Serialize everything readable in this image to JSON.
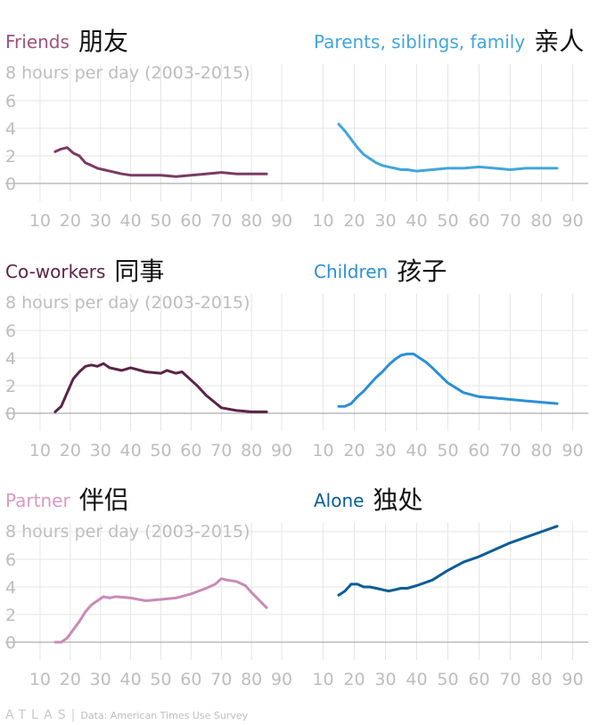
{
  "subtitle": "8 hours per day (2003-2015)",
  "footer": {
    "logo": "ATLAS",
    "source": "Data: American Times Use Survey"
  },
  "colors": {
    "gridline": "#e6e6e6",
    "zero_line": "#9a9a9a",
    "tick_text": "#bdbdbd",
    "ytick_text": "#bdbdbd"
  },
  "chart_data": [
    {
      "type": "line",
      "title": "Friends",
      "title_zh": "朋友",
      "color": "#7b3a63",
      "title_color": "#a0527f",
      "show_subtitle": false,
      "x": [
        15,
        17,
        19,
        21,
        23,
        25,
        27,
        29,
        31,
        33,
        35,
        37,
        40,
        45,
        50,
        55,
        60,
        65,
        70,
        75,
        80,
        85
      ],
      "y": [
        2.3,
        2.5,
        2.6,
        2.2,
        2.0,
        1.5,
        1.3,
        1.1,
        1.0,
        0.9,
        0.8,
        0.7,
        0.6,
        0.6,
        0.6,
        0.5,
        0.6,
        0.7,
        0.8,
        0.7,
        0.7,
        0.7
      ],
      "xticks": [
        10,
        20,
        30,
        40,
        50,
        60,
        70,
        80,
        90
      ],
      "yticks": [
        0,
        2,
        4,
        6
      ],
      "xlim": [
        5,
        95
      ],
      "ylim": [
        0,
        8
      ]
    },
    {
      "type": "line",
      "title": "Parents, siblings, family",
      "title_zh": "亲人",
      "color": "#42a5dc",
      "title_color": "#42a5dc",
      "show_subtitle": false,
      "x": [
        15,
        17,
        19,
        21,
        23,
        25,
        27,
        29,
        31,
        33,
        35,
        37,
        40,
        45,
        50,
        55,
        60,
        65,
        70,
        75,
        80,
        85
      ],
      "y": [
        4.3,
        3.8,
        3.2,
        2.6,
        2.1,
        1.8,
        1.5,
        1.3,
        1.2,
        1.1,
        1.0,
        1.0,
        0.9,
        1.0,
        1.1,
        1.1,
        1.2,
        1.1,
        1.0,
        1.1,
        1.1,
        1.1
      ],
      "xticks": [
        10,
        20,
        30,
        40,
        50,
        60,
        70,
        80,
        90
      ],
      "yticks": [
        0,
        2,
        4,
        6
      ],
      "xlim": [
        5,
        95
      ],
      "ylim": [
        0,
        8
      ]
    },
    {
      "type": "line",
      "title": "Co-workers",
      "title_zh": "同事",
      "color": "#5b2346",
      "title_color": "#5b2346",
      "show_subtitle": true,
      "x": [
        15,
        17,
        19,
        21,
        23,
        25,
        27,
        29,
        31,
        33,
        35,
        37,
        40,
        45,
        50,
        52,
        55,
        57,
        60,
        62,
        65,
        70,
        75,
        80,
        85
      ],
      "y": [
        0.1,
        0.5,
        1.5,
        2.5,
        3.0,
        3.4,
        3.5,
        3.4,
        3.6,
        3.3,
        3.2,
        3.1,
        3.3,
        3.0,
        2.9,
        3.1,
        2.9,
        3.0,
        2.4,
        2.0,
        1.3,
        0.4,
        0.2,
        0.1,
        0.1
      ],
      "xticks": [
        10,
        20,
        30,
        40,
        50,
        60,
        70,
        80,
        90
      ],
      "yticks": [
        0,
        2,
        4,
        6
      ],
      "xlim": [
        5,
        95
      ],
      "ylim": [
        0,
        8
      ]
    },
    {
      "type": "line",
      "title": "Children",
      "title_zh": "孩子",
      "color": "#2b8fd6",
      "title_color": "#2b8fd6",
      "show_subtitle": false,
      "x": [
        15,
        17,
        19,
        21,
        23,
        25,
        27,
        29,
        31,
        33,
        35,
        37,
        39,
        41,
        43,
        45,
        50,
        55,
        60,
        65,
        70,
        75,
        80,
        85
      ],
      "y": [
        0.5,
        0.5,
        0.7,
        1.2,
        1.6,
        2.1,
        2.6,
        3.0,
        3.5,
        3.9,
        4.2,
        4.3,
        4.3,
        4.0,
        3.7,
        3.3,
        2.2,
        1.5,
        1.2,
        1.1,
        1.0,
        0.9,
        0.8,
        0.7
      ],
      "xticks": [
        10,
        20,
        30,
        40,
        50,
        60,
        70,
        80,
        90
      ],
      "yticks": [
        0,
        2,
        4,
        6
      ],
      "xlim": [
        5,
        95
      ],
      "ylim": [
        0,
        8
      ]
    },
    {
      "type": "line",
      "title": "Partner",
      "title_zh": "伴侣",
      "color": "#c98bb5",
      "title_color": "#d99ac4",
      "show_subtitle": true,
      "x": [
        15,
        17,
        19,
        21,
        23,
        25,
        27,
        29,
        31,
        33,
        35,
        40,
        45,
        50,
        55,
        60,
        65,
        68,
        70,
        72,
        75,
        78,
        80,
        85
      ],
      "y": [
        0.0,
        0.0,
        0.3,
        0.9,
        1.5,
        2.2,
        2.7,
        3.0,
        3.3,
        3.2,
        3.3,
        3.2,
        3.0,
        3.1,
        3.2,
        3.5,
        3.9,
        4.2,
        4.6,
        4.5,
        4.4,
        4.1,
        3.6,
        2.5
      ],
      "xticks": [
        10,
        20,
        30,
        40,
        50,
        60,
        70,
        80,
        90
      ],
      "yticks": [
        0,
        2,
        4,
        6,
        8
      ],
      "xlim": [
        5,
        95
      ],
      "ylim": [
        0,
        8
      ]
    },
    {
      "type": "line",
      "title": "Alone",
      "title_zh": "独处",
      "color": "#0b5d96",
      "title_color": "#0b5d96",
      "show_subtitle": false,
      "x": [
        15,
        17,
        19,
        21,
        23,
        25,
        27,
        29,
        31,
        33,
        35,
        37,
        40,
        45,
        50,
        55,
        60,
        65,
        70,
        75,
        80,
        85
      ],
      "y": [
        3.4,
        3.7,
        4.2,
        4.2,
        4.0,
        4.0,
        3.9,
        3.8,
        3.7,
        3.8,
        3.9,
        3.9,
        4.1,
        4.5,
        5.2,
        5.8,
        6.2,
        6.7,
        7.2,
        7.6,
        8.0,
        8.4
      ],
      "xticks": [
        10,
        20,
        30,
        40,
        50,
        60,
        70,
        80,
        90
      ],
      "yticks": [
        0,
        2,
        4,
        6,
        8
      ],
      "xlim": [
        5,
        95
      ],
      "ylim": [
        0,
        8
      ]
    }
  ]
}
